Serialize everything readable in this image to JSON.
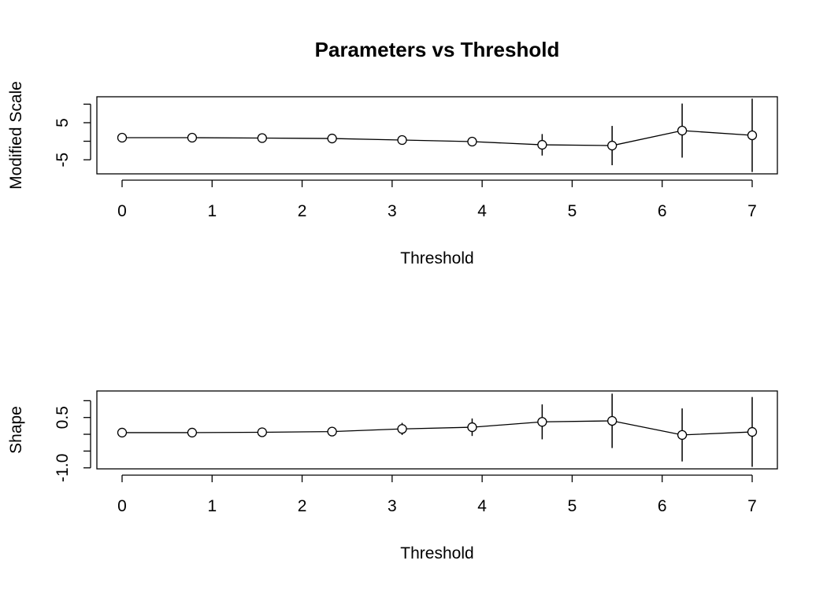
{
  "chart_data": [
    {
      "type": "line",
      "title": "Parameters vs Threshold",
      "xlabel": "Threshold",
      "ylabel": "Modified Scale",
      "x": [
        0,
        0.778,
        1.556,
        2.333,
        3.111,
        3.889,
        4.667,
        5.444,
        6.222,
        7
      ],
      "values": [
        0.96,
        0.96,
        0.85,
        0.74,
        0.32,
        -0.1,
        -0.96,
        -1.17,
        2.87,
        1.6
      ],
      "errors": [
        0.3,
        0.3,
        0.3,
        0.3,
        0.4,
        0.5,
        2.9,
        5.3,
        7.3,
        9.9
      ],
      "xlim": [
        -0.28,
        7.28
      ],
      "ylim": [
        -8.8,
        12.0
      ],
      "xticks": [
        0,
        1,
        2,
        3,
        4,
        5,
        6,
        7
      ],
      "yticks": [
        -5,
        {
          "value": 0,
          "label": null
        },
        5,
        {
          "value": 10,
          "label": null
        }
      ]
    },
    {
      "type": "line",
      "xlabel": "Threshold",
      "ylabel": "Shape",
      "x": [
        0,
        0.778,
        1.556,
        2.333,
        3.111,
        3.889,
        4.667,
        5.444,
        6.222,
        7
      ],
      "values": [
        0.05,
        0.05,
        0.06,
        0.08,
        0.16,
        0.21,
        0.37,
        0.4,
        -0.02,
        0.07
      ],
      "errors": [
        0.03,
        0.03,
        0.04,
        0.05,
        0.18,
        0.26,
        0.52,
        0.81,
        0.79,
        1.04
      ],
      "xlim": [
        -0.28,
        7.28
      ],
      "ylim": [
        -1.03,
        1.29
      ],
      "xticks": [
        0,
        1,
        2,
        3,
        4,
        5,
        6,
        7
      ],
      "yticks": [
        {
          "value": -1.0,
          "label": "-1.0"
        },
        {
          "value": -0.5,
          "label": null
        },
        {
          "value": 0,
          "label": null
        },
        0.5,
        {
          "value": 1.0,
          "label": null
        }
      ]
    }
  ]
}
